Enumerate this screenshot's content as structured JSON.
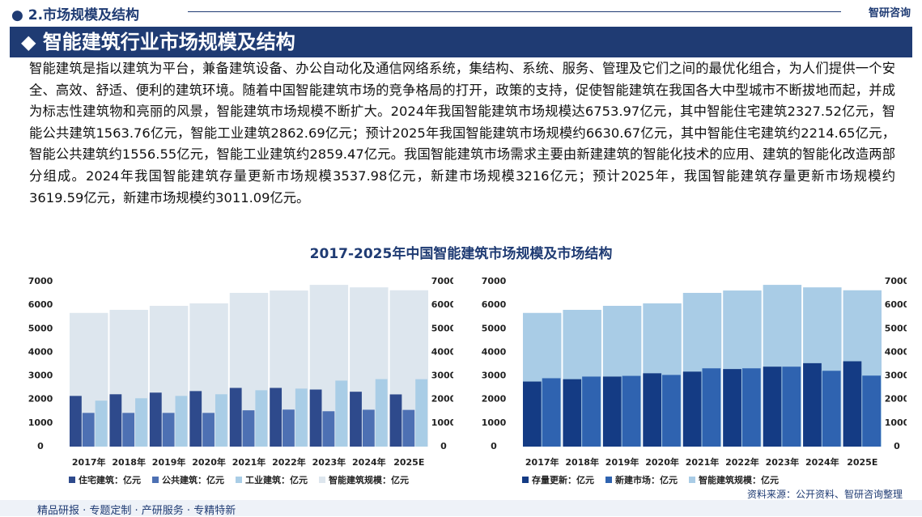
{
  "header": {
    "section": "2.市场规模及结构",
    "logo": "智研咨询",
    "banner": "◆ 智能建筑行业市场规模及结构"
  },
  "paragraph": "智能建筑是指以建筑为平台，兼备建筑设备、办公自动化及通信网络系统，集结构、系统、服务、管理及它们之间的最优化组合，为人们提供一个安全、高效、舒适、便利的建筑环境。随着中国智能建筑市场的竞争格局的打开，政策的支持，促使智能建筑在我国各大中型城市不断拔地而起，并成为标志性建筑物和亮丽的风景，智能建筑市场规模不断扩大。2024年我国智能建筑市场规模达6753.97亿元，其中智能住宅建筑2327.52亿元，智能公共建筑1563.76亿元，智能工业建筑2862.69亿元；预计2025年我国智能建筑市场规模约6630.67亿元，其中智能住宅建筑约2214.65亿元，智能公共建筑约1556.55亿元，智能工业建筑约2859.47亿元。我国智能建筑市场需求主要由新建建筑的智能化技术的应用、建筑的智能化改造两部分组成。2024年我国智能建筑存量更新市场规模3537.98亿元，新建市场规模3216亿元；预计2025年，我国智能建筑存量更新市场规模约3619.59亿元，新建市场规模约3011.09亿元。",
  "chart_title": "2017-2025年中国智能建筑市场规模及市场结构",
  "chart_data": [
    {
      "type": "bar",
      "categories": [
        "2017年",
        "2018年",
        "2019年",
        "2020年",
        "2021年",
        "2022年",
        "2023年",
        "2024年",
        "2025E"
      ],
      "series": [
        {
          "name": "住宅建筑：亿元",
          "color": "#2e4a8c",
          "values": [
            2150,
            2220,
            2290,
            2355,
            2490,
            2490,
            2420,
            2327.52,
            2214.65
          ]
        },
        {
          "name": "公共建筑：亿元",
          "color": "#4d70b3",
          "values": [
            1430,
            1430,
            1430,
            1430,
            1540,
            1570,
            1500,
            1563.76,
            1556.55
          ]
        },
        {
          "name": "工业建筑：亿元",
          "color": "#a9cde6",
          "values": [
            1950,
            2050,
            2150,
            2220,
            2390,
            2460,
            2800,
            2862.69,
            2859.47
          ]
        },
        {
          "name": "智能建筑规模：亿元",
          "color": "#dde6ee",
          "values": [
            5670,
            5800,
            5970,
            6075,
            6520,
            6620,
            6860,
            6753.97,
            6630.67
          ]
        }
      ],
      "ylim": [
        0,
        7000
      ],
      "yticks": [
        0,
        1000,
        2000,
        3000,
        4000,
        5000,
        6000,
        7000
      ]
    },
    {
      "type": "bar",
      "categories": [
        "2017年",
        "2018年",
        "2019年",
        "2020年",
        "2021年",
        "2022年",
        "2023年",
        "2024年",
        "2025E"
      ],
      "series": [
        {
          "name": "存量更新：亿元",
          "color": "#143b84",
          "values": [
            2760,
            2860,
            2970,
            3110,
            3180,
            3290,
            3390,
            3537.98,
            3619.59
          ]
        },
        {
          "name": "新建市场：亿元",
          "color": "#2f63b0",
          "values": [
            2900,
            2970,
            3000,
            3040,
            3320,
            3320,
            3390,
            3216,
            3011.09
          ]
        },
        {
          "name": "智能建筑规模：亿元",
          "color": "#a9cce6",
          "values": [
            5670,
            5800,
            5970,
            6075,
            6520,
            6620,
            6860,
            6753.97,
            6630.67
          ]
        }
      ],
      "ylim": [
        0,
        7000
      ],
      "yticks": [
        0,
        1000,
        2000,
        3000,
        4000,
        5000,
        6000,
        7000
      ]
    }
  ],
  "footer": {
    "left": "精品研报 · 专题定制 · 产研服务 · 专精特新",
    "source": "资料来源：公开资料、智研咨询整理"
  }
}
